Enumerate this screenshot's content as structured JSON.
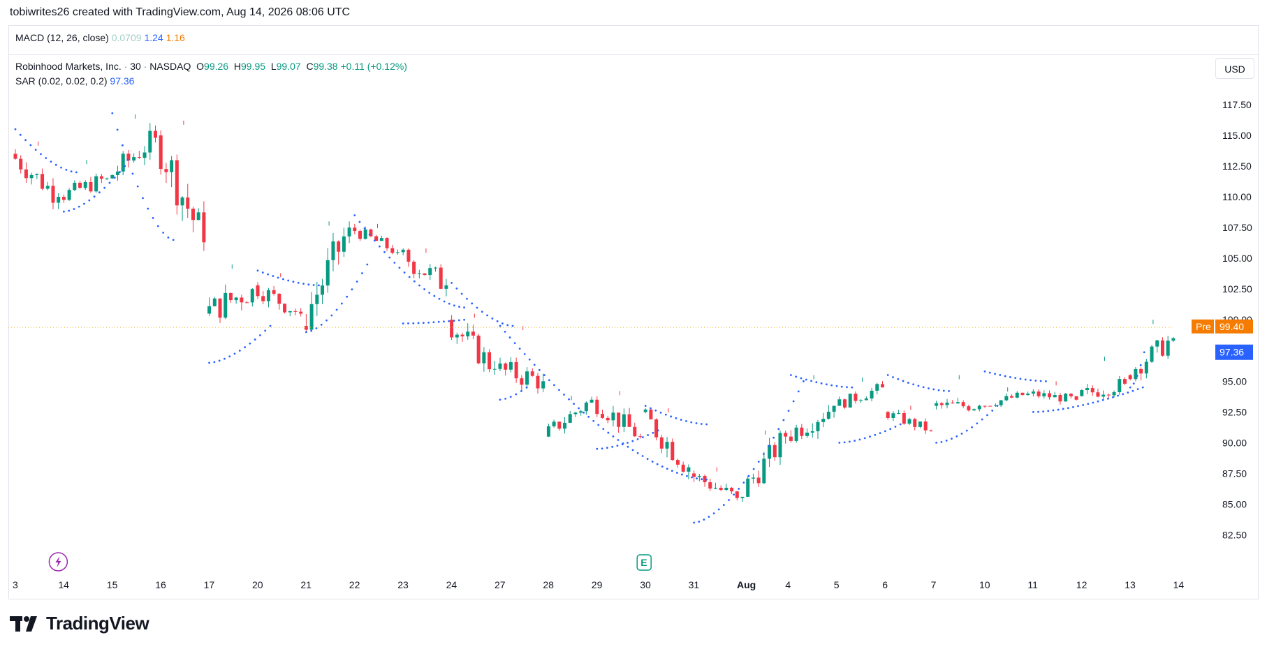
{
  "header": {
    "attribution": "tobiwrites26 created with TradingView.com, Aug 14, 2026 08:06 UTC"
  },
  "macd": {
    "label": "MACD (12, 26, close)",
    "histogram": "0.0709",
    "macd": "1.24",
    "signal": "1.16"
  },
  "symbol": {
    "name": "Robinhood Markets, Inc.",
    "sep1": "·",
    "interval": "30",
    "sep2": "·",
    "exchange": "NASDAQ",
    "o_label": "O",
    "open": "99.26",
    "h_label": "H",
    "high": "99.95",
    "l_label": "L",
    "low": "99.07",
    "c_label": "C",
    "close": "99.38",
    "change": "+0.11 (+0.12%)"
  },
  "sar": {
    "label": "SAR (0.02, 0.02, 0.2)",
    "value": "97.36"
  },
  "currency": "USD",
  "brand": {
    "name": "TradingView"
  },
  "colors": {
    "up": "#089981",
    "down": "#f23645",
    "sar": "#2962ff",
    "pre": "#f57c00",
    "last_price_line": "#e6b422",
    "grid_text": "#131722"
  },
  "chart_data": {
    "type": "candlestick",
    "x_labels": [
      "3",
      "14",
      "15",
      "16",
      "17",
      "20",
      "21",
      "22",
      "23",
      "24",
      "27",
      "28",
      "29",
      "30",
      "31",
      "Aug",
      "4",
      "5",
      "6",
      "7",
      "10",
      "11",
      "12",
      "13",
      "14"
    ],
    "y_ticks": [
      "117.50",
      "115.00",
      "112.50",
      "110.00",
      "107.50",
      "105.00",
      "102.50",
      "100.00",
      "97.50",
      "95.00",
      "92.50",
      "90.00",
      "87.50",
      "85.00",
      "82.50"
    ],
    "ylim": [
      80.6,
      119.2
    ],
    "daily_anchors": [
      {
        "day": "3",
        "open": 113.5,
        "close": 110.0,
        "high": 114.5,
        "low": 109.0
      },
      {
        "day": "14",
        "open": 110.0,
        "close": 111.5,
        "high": 113.0,
        "low": 109.2
      },
      {
        "day": "15",
        "open": 111.5,
        "close": 114.8,
        "high": 116.7,
        "low": 111.0
      },
      {
        "day": "16",
        "open": 115.0,
        "close": 106.3,
        "high": 116.2,
        "low": 105.6
      },
      {
        "day": "17",
        "open": 100.5,
        "close": 102.5,
        "high": 104.5,
        "low": 97.7
      },
      {
        "day": "20",
        "open": 102.8,
        "close": 100.5,
        "high": 103.8,
        "low": 99.3
      },
      {
        "day": "21",
        "open": 99.5,
        "close": 107.5,
        "high": 108.0,
        "low": 99.0
      },
      {
        "day": "22",
        "open": 107.5,
        "close": 105.5,
        "high": 107.8,
        "low": 104.8
      },
      {
        "day": "23",
        "open": 105.5,
        "close": 102.8,
        "high": 105.8,
        "low": 99.8
      },
      {
        "day": "24",
        "open": 100.0,
        "close": 96.0,
        "high": 100.5,
        "low": 94.5
      },
      {
        "day": "27",
        "open": 96.0,
        "close": 95.0,
        "high": 99.5,
        "low": 94.0
      },
      {
        "day": "28",
        "open": 90.5,
        "close": 93.5,
        "high": 93.8,
        "low": 89.8
      },
      {
        "day": "29",
        "open": 93.5,
        "close": 90.5,
        "high": 94.2,
        "low": 89.5
      },
      {
        "day": "30",
        "open": 92.5,
        "close": 88.0,
        "high": 92.8,
        "low": 86.5
      },
      {
        "day": "31",
        "open": 87.5,
        "close": 85.5,
        "high": 88.0,
        "low": 84.0
      },
      {
        "day": "Aug",
        "open": 85.5,
        "close": 90.5,
        "high": 91.0,
        "low": 85.0
      },
      {
        "day": "4",
        "open": 90.5,
        "close": 93.0,
        "high": 95.5,
        "low": 90.0
      },
      {
        "day": "5",
        "open": 93.0,
        "close": 94.5,
        "high": 95.3,
        "low": 92.5
      },
      {
        "day": "6",
        "open": 92.5,
        "close": 91.0,
        "high": 93.0,
        "low": 90.5
      },
      {
        "day": "7",
        "open": 93.0,
        "close": 93.0,
        "high": 95.5,
        "low": 92.5
      },
      {
        "day": "10",
        "open": 93.0,
        "close": 94.0,
        "high": 94.5,
        "low": 92.5
      },
      {
        "day": "11",
        "open": 94.0,
        "close": 93.5,
        "high": 95.0,
        "low": 92.8
      },
      {
        "day": "12",
        "open": 93.8,
        "close": 94.8,
        "high": 97.0,
        "low": 93.5
      },
      {
        "day": "13",
        "open": 95.5,
        "close": 98.5,
        "high": 100.0,
        "low": 95.0
      },
      {
        "day": "14",
        "open": 98.5,
        "close": 99.4,
        "high": 99.95,
        "low": 98.2
      }
    ],
    "last_close": 99.38,
    "pre_label": "Pre",
    "pre_value": "99.40",
    "sar_value": 97.36,
    "sar_segments": [
      {
        "from": "3",
        "to": "14",
        "side": "above",
        "start": 115.5,
        "end": 112.0
      },
      {
        "from": "14",
        "to": "15",
        "side": "below",
        "start": 108.8,
        "end": 112.5
      },
      {
        "from": "15",
        "to": "16",
        "side": "above",
        "start": 116.8,
        "end": 106.5
      },
      {
        "from": "17",
        "to": "20",
        "side": "below",
        "start": 96.5,
        "end": 99.5
      },
      {
        "from": "20",
        "to": "21",
        "side": "above",
        "start": 104.0,
        "end": 102.8
      },
      {
        "from": "21",
        "to": "22",
        "side": "below",
        "start": 99.0,
        "end": 104.5
      },
      {
        "from": "22",
        "to": "24",
        "side": "above",
        "start": 108.5,
        "end": 101.0
      },
      {
        "from": "23",
        "to": "24",
        "side": "below",
        "start": 99.7,
        "end": 100.0
      },
      {
        "from": "24",
        "to": "27",
        "side": "above",
        "start": 103.0,
        "end": 99.5
      },
      {
        "from": "27",
        "to": "27",
        "side": "below",
        "start": 93.5,
        "end": 94.5
      },
      {
        "from": "27",
        "to": "31",
        "side": "above",
        "start": 99.5,
        "end": 87.0
      },
      {
        "from": "29",
        "to": "30",
        "side": "below",
        "start": 89.5,
        "end": 91.0
      },
      {
        "from": "30",
        "to": "31",
        "side": "above",
        "start": 93.0,
        "end": 91.5
      },
      {
        "from": "31",
        "to": "4",
        "side": "below",
        "start": 83.5,
        "end": 95.0
      },
      {
        "from": "4",
        "to": "5",
        "side": "above",
        "start": 95.5,
        "end": 94.5
      },
      {
        "from": "5",
        "to": "6",
        "side": "below",
        "start": 90.0,
        "end": 91.5
      },
      {
        "from": "6",
        "to": "7",
        "side": "above",
        "start": 95.5,
        "end": 94.2
      },
      {
        "from": "7",
        "to": "10",
        "side": "below",
        "start": 90.0,
        "end": 93.0
      },
      {
        "from": "10",
        "to": "11",
        "side": "above",
        "start": 95.8,
        "end": 95.0
      },
      {
        "from": "11",
        "to": "13",
        "side": "below",
        "start": 92.5,
        "end": 94.5
      },
      {
        "from": "13",
        "to": "14",
        "side": "below",
        "start": 94.5,
        "end": 97.36
      }
    ],
    "events": [
      {
        "label": "E",
        "day": "30"
      }
    ],
    "lightning_icon_day": "14"
  }
}
